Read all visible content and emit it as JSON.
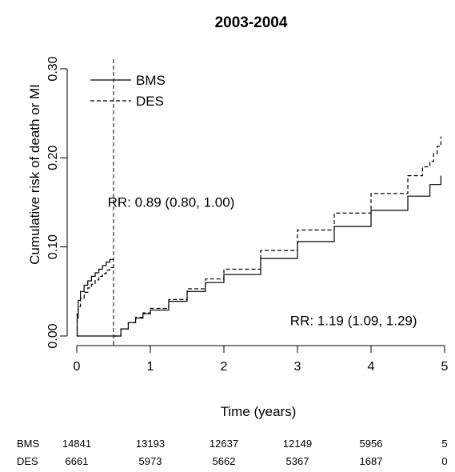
{
  "chart_data": {
    "type": "line",
    "title": "2003-2004",
    "xlabel": "Time (years)",
    "ylabel": "Cumulative risk of death or MI",
    "xlim": [
      0,
      5
    ],
    "ylim": [
      0,
      0.3
    ],
    "x_ticks": [
      "0",
      "1",
      "2",
      "3",
      "4",
      "5"
    ],
    "y_ticks": [
      "0.00",
      "0.10",
      "0.20",
      "0.30"
    ],
    "landmark_x": 0.5,
    "legend": {
      "position": "top-left",
      "entries": [
        "BMS",
        "DES"
      ]
    },
    "annotations": [
      {
        "text": "RR: 0.89 (0.80, 1.00)",
        "x": 0.42,
        "y": 0.145
      },
      {
        "text": "RR: 1.19 (1.09, 1.29)",
        "x": 2.9,
        "y": 0.012
      }
    ],
    "series": [
      {
        "name": "BMS",
        "style": "solid",
        "segments": [
          {
            "x": [
              0,
              0.005,
              0.02,
              0.05,
              0.1,
              0.15,
              0.2,
              0.25,
              0.3,
              0.35,
              0.4,
              0.45,
              0.5
            ],
            "y": [
              0,
              0.025,
              0.04,
              0.05,
              0.057,
              0.062,
              0.067,
              0.071,
              0.075,
              0.079,
              0.083,
              0.086,
              0.087
            ]
          },
          {
            "x": [
              0.5,
              0.6,
              0.7,
              0.8,
              0.9,
              1.0,
              1.25,
              1.5,
              1.75,
              2.0,
              2.5,
              3.0,
              3.5,
              4.0,
              4.5,
              4.8,
              4.95
            ],
            "y": [
              0,
              0.008,
              0.015,
              0.02,
              0.025,
              0.029,
              0.039,
              0.05,
              0.06,
              0.069,
              0.087,
              0.106,
              0.123,
              0.141,
              0.157,
              0.17,
              0.18
            ]
          }
        ]
      },
      {
        "name": "DES",
        "style": "dashed",
        "segments": [
          {
            "x": [
              0,
              0.005,
              0.02,
              0.05,
              0.1,
              0.15,
              0.2,
              0.25,
              0.3,
              0.35,
              0.4,
              0.45,
              0.5
            ],
            "y": [
              0,
              0.02,
              0.033,
              0.042,
              0.049,
              0.054,
              0.058,
              0.063,
              0.067,
              0.07,
              0.074,
              0.077,
              0.08
            ]
          },
          {
            "x": [
              0.5,
              0.6,
              0.7,
              0.8,
              0.9,
              1.0,
              1.25,
              1.5,
              1.75,
              2.0,
              2.5,
              3.0,
              3.5,
              4.0,
              4.5,
              4.7,
              4.8,
              4.85,
              4.9,
              4.95
            ],
            "y": [
              0,
              0.008,
              0.015,
              0.021,
              0.026,
              0.031,
              0.041,
              0.053,
              0.064,
              0.075,
              0.096,
              0.119,
              0.138,
              0.16,
              0.18,
              0.19,
              0.196,
              0.205,
              0.213,
              0.224
            ]
          }
        ]
      }
    ],
    "risk_table": {
      "times": [
        0,
        1,
        2,
        3,
        4,
        5
      ],
      "rows": [
        {
          "label": "BMS",
          "values": [
            "14841",
            "13193",
            "12637",
            "12149",
            "5956",
            "5"
          ]
        },
        {
          "label": "DES",
          "values": [
            "6661",
            "5973",
            "5662",
            "5367",
            "1687",
            "0"
          ]
        }
      ]
    }
  }
}
